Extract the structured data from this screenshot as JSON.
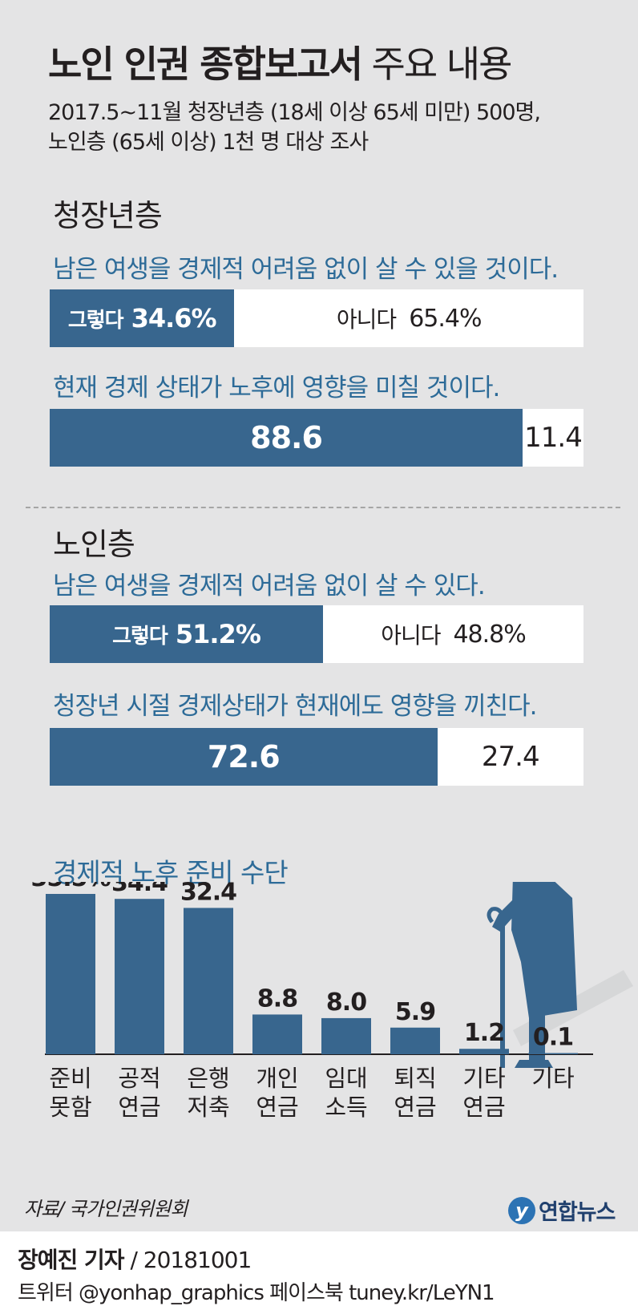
{
  "header": {
    "title_bold": "노인 인권 종합보고서",
    "title_light": "주요 내용",
    "subtitle_line1": "2017.5~11월 청장년층 (18세 이상 65세 미만) 500명,",
    "subtitle_line2": "노인층 (65세 이상) 1천 명 대상 조사"
  },
  "young": {
    "section_title": "청장년층",
    "q1": {
      "question": "남은 여생을 경제적 어려움 없이 살 수 있을 것이다.",
      "yes_label": "그렇다",
      "yes_value": "34.6%",
      "yes_fraction": 0.346,
      "no_label": "아니다",
      "no_value": "65.4%"
    },
    "q2": {
      "question": "현재 경제 상태가 노후에 영향을 미칠 것이다.",
      "yes_value": "88.6",
      "yes_fraction": 0.886,
      "no_value": "11.4"
    }
  },
  "elderly": {
    "section_title": "노인층",
    "q1": {
      "question": "남은 여생을 경제적 어려움 없이 살 수 있다.",
      "yes_label": "그렇다",
      "yes_value": "51.2%",
      "yes_fraction": 0.512,
      "no_label": "아니다",
      "no_value": "48.8%"
    },
    "q2": {
      "question": "청장년 시절 경제상태가 현재에도 영향을 끼친다.",
      "yes_value": "72.6",
      "yes_fraction": 0.726,
      "no_value": "27.4"
    }
  },
  "chart_heading": "경제적 노후 준비 수단",
  "chart_data": {
    "type": "bar",
    "categories": [
      [
        "준비",
        "못함"
      ],
      [
        "공적",
        "연금"
      ],
      [
        "은행",
        "저축"
      ],
      [
        "개인",
        "연금"
      ],
      [
        "임대",
        "소득"
      ],
      [
        "퇴직",
        "연금"
      ],
      [
        "기타",
        "연금"
      ],
      [
        "기타"
      ]
    ],
    "values": [
      35.5,
      34.4,
      32.4,
      8.8,
      8.0,
      5.9,
      1.2,
      0.1
    ],
    "value_labels": [
      "35.5%",
      "34.4",
      "32.4",
      "8.8",
      "8.0",
      "5.9",
      "1.2",
      "0.1"
    ],
    "bar_color": "#38668e"
  },
  "footer": {
    "source": "자료/ 국가인권위원회",
    "logo_mark": "y",
    "logo_text": "연합뉴스",
    "reporter": "장예진 기자",
    "date": " / 20181001",
    "social": "트위터 @yonhap_graphics  페이스북 tuney.kr/LeYN1"
  },
  "colors": {
    "panel_bg": "#e4e4e5",
    "bar_fill": "#38668e",
    "question_text": "#2d6b98"
  }
}
